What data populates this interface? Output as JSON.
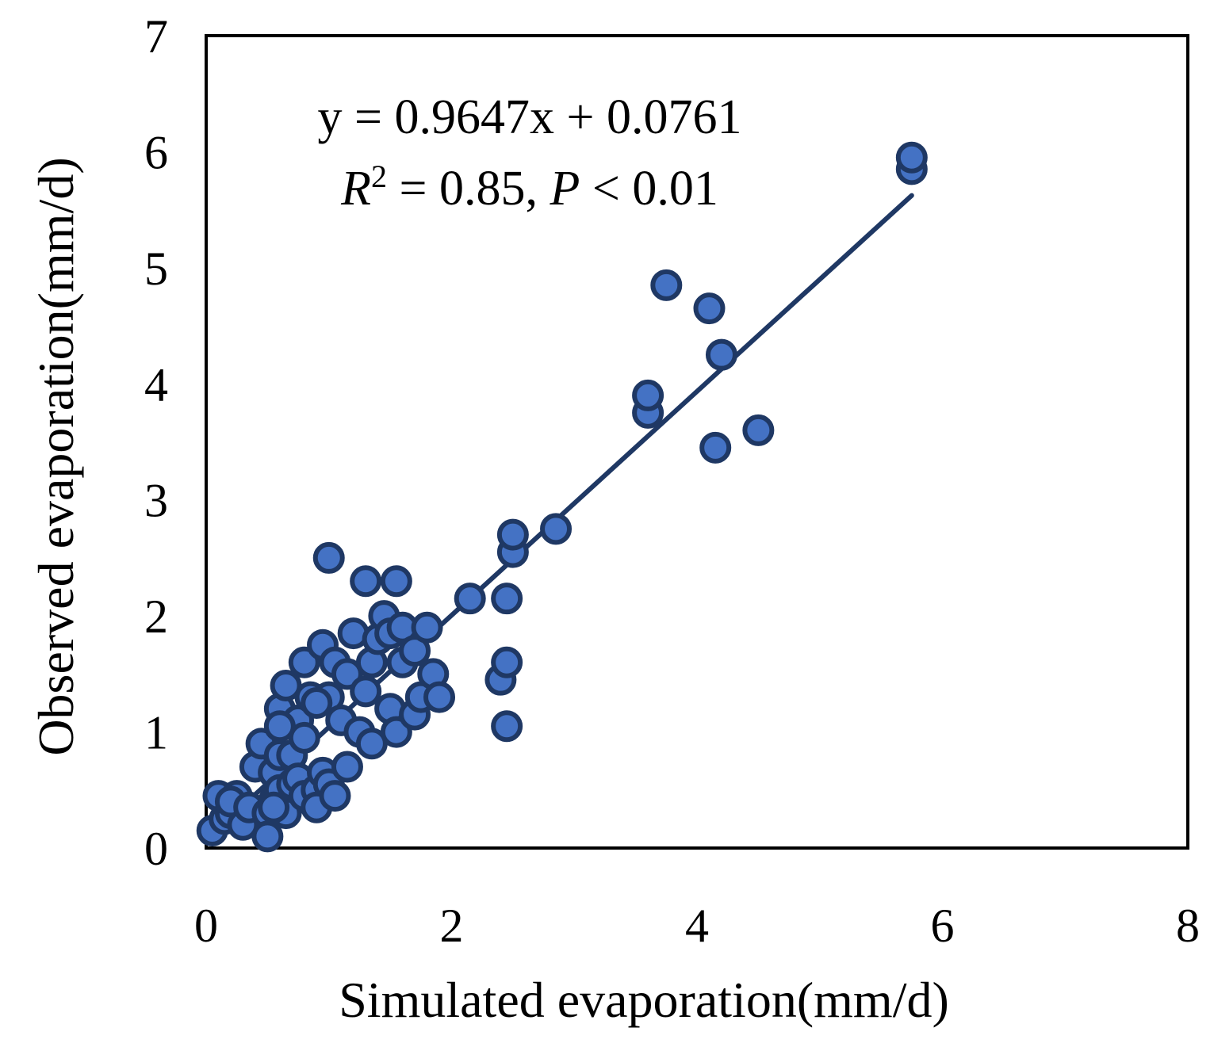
{
  "chart_data": {
    "type": "scatter",
    "title": "",
    "xlabel": "Simulated evaporation(mm/d)",
    "ylabel": "Observed evaporation(mm/d)",
    "xlim": [
      0,
      8
    ],
    "ylim": [
      0,
      7
    ],
    "xticks": [
      "0",
      "2",
      "4",
      "6",
      "8"
    ],
    "yticks": [
      "0",
      "1",
      "2",
      "3",
      "4",
      "5",
      "6",
      "7"
    ],
    "grid": false,
    "legend": "none",
    "annotation": {
      "equation": "y = 0.9647x + 0.0761",
      "r_symbol": "R",
      "r_exponent": "2",
      "r_value": " = 0.85, ",
      "p_symbol": "P",
      "p_value": " < 0.01"
    },
    "trendline": {
      "slope": 0.9647,
      "intercept": 0.0761,
      "x_range": [
        0.1,
        5.75
      ]
    },
    "colors": {
      "marker_fill": "#4472C4",
      "marker_edge": "#1F3864",
      "trendline": "#1F3864"
    },
    "series": [
      {
        "points": [
          [
            0.05,
            0.15
          ],
          [
            0.1,
            0.45
          ],
          [
            0.15,
            0.25
          ],
          [
            0.2,
            0.3
          ],
          [
            0.25,
            0.45
          ],
          [
            0.2,
            0.4
          ],
          [
            0.3,
            0.2
          ],
          [
            0.35,
            0.35
          ],
          [
            0.4,
            0.7
          ],
          [
            0.45,
            0.9
          ],
          [
            0.5,
            0.3
          ],
          [
            0.5,
            0.1
          ],
          [
            0.55,
            0.4
          ],
          [
            0.55,
            0.65
          ],
          [
            0.6,
            0.5
          ],
          [
            0.6,
            0.8
          ],
          [
            0.6,
            1.2
          ],
          [
            0.65,
            1.4
          ],
          [
            0.65,
            0.3
          ],
          [
            0.7,
            0.55
          ],
          [
            0.7,
            0.8
          ],
          [
            0.75,
            1.1
          ],
          [
            0.75,
            0.6
          ],
          [
            0.8,
            0.45
          ],
          [
            0.8,
            0.95
          ],
          [
            0.8,
            1.6
          ],
          [
            0.85,
            1.3
          ],
          [
            0.9,
            0.5
          ],
          [
            0.9,
            0.35
          ],
          [
            0.95,
            0.65
          ],
          [
            0.95,
            1.75
          ],
          [
            1.0,
            1.3
          ],
          [
            1.0,
            0.55
          ],
          [
            1.05,
            1.6
          ],
          [
            1.05,
            0.45
          ],
          [
            1.1,
            1.1
          ],
          [
            1.15,
            0.7
          ],
          [
            1.15,
            1.5
          ],
          [
            1.2,
            1.85
          ],
          [
            1.25,
            1.0
          ],
          [
            1.3,
            1.35
          ],
          [
            1.35,
            1.6
          ],
          [
            1.35,
            0.9
          ],
          [
            1.4,
            1.8
          ],
          [
            1.45,
            2.0
          ],
          [
            1.5,
            1.2
          ],
          [
            1.5,
            1.85
          ],
          [
            1.55,
            1.0
          ],
          [
            1.6,
            1.6
          ],
          [
            1.6,
            1.9
          ],
          [
            1.7,
            1.7
          ],
          [
            1.7,
            1.15
          ],
          [
            1.75,
            1.3
          ],
          [
            1.8,
            1.9
          ],
          [
            1.85,
            1.5
          ],
          [
            1.9,
            1.3
          ],
          [
            0.55,
            0.35
          ],
          [
            0.6,
            1.05
          ],
          [
            0.9,
            1.25
          ],
          [
            1.0,
            2.5
          ],
          [
            1.3,
            2.3
          ],
          [
            1.55,
            2.3
          ],
          [
            2.15,
            2.15
          ],
          [
            2.4,
            1.45
          ],
          [
            2.45,
            1.6
          ],
          [
            2.45,
            1.05
          ],
          [
            2.45,
            2.15
          ],
          [
            2.5,
            2.55
          ],
          [
            2.5,
            2.7
          ],
          [
            2.85,
            2.75
          ],
          [
            3.6,
            3.75
          ],
          [
            3.6,
            3.9
          ],
          [
            3.75,
            4.85
          ],
          [
            4.1,
            4.65
          ],
          [
            4.15,
            3.45
          ],
          [
            4.2,
            4.25
          ],
          [
            4.5,
            3.6
          ],
          [
            5.75,
            5.85
          ],
          [
            5.75,
            5.95
          ]
        ]
      }
    ]
  }
}
